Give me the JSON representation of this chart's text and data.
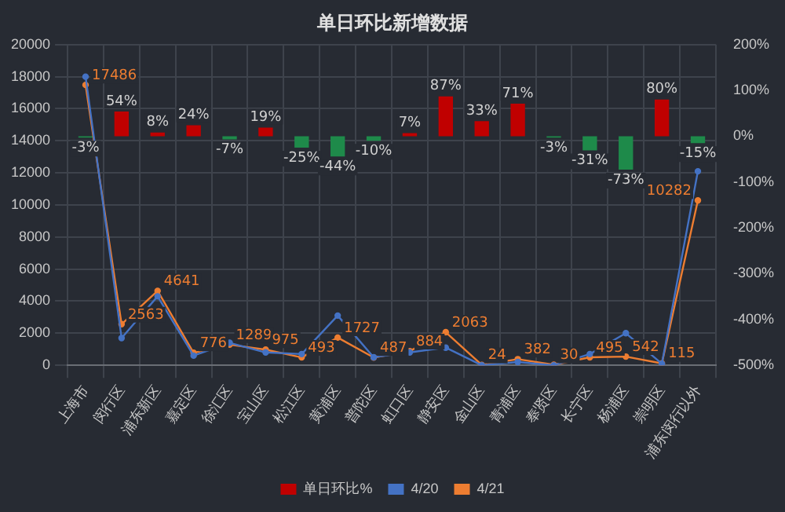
{
  "chart_data": {
    "type": "bar",
    "title": "单日环比新增数据",
    "categories": [
      "上海市",
      "闵行区",
      "浦东新区",
      "嘉定区",
      "徐汇区",
      "宝山区",
      "松江区",
      "黄浦区",
      "普陀区",
      "虹口区",
      "静安区",
      "金山区",
      "青浦区",
      "奉贤区",
      "长宁区",
      "杨浦区",
      "崇明区",
      "浦东闵行以外"
    ],
    "series": [
      {
        "name": "单日环比%",
        "axis": "y2",
        "colors": [
          "#1e8a4a",
          "#c00000",
          "#c00000",
          "#c00000",
          "#1e8a4a",
          "#c00000",
          "#1e8a4a",
          "#1e8a4a",
          "#1e8a4a",
          "#c00000",
          "#c00000",
          "#c00000",
          "#c00000",
          "#1e8a4a",
          "#1e8a4a",
          "#1e8a4a",
          "#c00000",
          "#1e8a4a"
        ],
        "color": "#c00000",
        "values": [
          -3,
          54,
          8,
          24,
          -7,
          19,
          -25,
          -44,
          -10,
          7,
          87,
          33,
          71,
          -3,
          -31,
          -73,
          80,
          -15
        ],
        "value_labels": [
          "-3%",
          "54%",
          "8%",
          "24%",
          "-7%",
          "19%",
          "-25%",
          "-44%",
          "-10%",
          "7%",
          "87%",
          "33%",
          "71%",
          "-3%",
          "-31%",
          "-73%",
          "80%",
          "-15%"
        ]
      },
      {
        "name": "4/20",
        "type": "line",
        "color": "#4472c4",
        "values": [
          18000,
          1700,
          4300,
          600,
          1400,
          800,
          700,
          3100,
          500,
          800,
          1100,
          0,
          200,
          0,
          700,
          2000,
          100,
          12100
        ]
      },
      {
        "name": "4/21",
        "type": "line",
        "color": "#ed7d31",
        "values": [
          17486,
          2563,
          4641,
          776,
          1289,
          975,
          493,
          1727,
          487,
          884,
          2063,
          24,
          382,
          30,
          495,
          542,
          115,
          10282
        ],
        "value_labels": [
          "17486",
          "2563",
          "4641",
          "776",
          "1289",
          "975",
          "493",
          "1727",
          "487",
          "884",
          "2063",
          "24",
          "382",
          "30",
          "495",
          "542",
          "115",
          "10282"
        ]
      }
    ],
    "ylim": [
      0,
      20000
    ],
    "yticks": [
      0,
      2000,
      4000,
      6000,
      8000,
      10000,
      12000,
      14000,
      16000,
      18000,
      20000
    ],
    "y2lim": [
      -500,
      200
    ],
    "y2ticks": [
      {
        "value": -500,
        "label": "-500%"
      },
      {
        "value": -400,
        "label": "-400%"
      },
      {
        "value": -300,
        "label": "-300%"
      },
      {
        "value": -200,
        "label": "-200%"
      },
      {
        "value": -100,
        "label": "-100%"
      },
      {
        "value": 0,
        "label": "0%"
      },
      {
        "value": 100,
        "label": "100%"
      },
      {
        "value": 200,
        "label": "200%"
      }
    ],
    "grid": true,
    "legend": "bottom",
    "marker": "circle",
    "line_style": "solid"
  }
}
